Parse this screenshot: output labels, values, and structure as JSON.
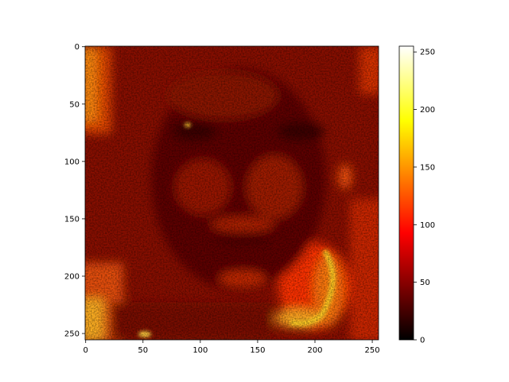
{
  "chart_data": {
    "type": "heatmap",
    "title": "",
    "xlabel": "",
    "ylabel": "",
    "image_size": [
      256,
      256
    ],
    "xlim": [
      0,
      255
    ],
    "ylim": [
      255,
      0
    ],
    "y_inverted": true,
    "x_ticks": [
      0,
      50,
      100,
      150,
      200,
      250
    ],
    "y_ticks": [
      0,
      50,
      100,
      150,
      200,
      250
    ],
    "colormap": "hot",
    "colorbar": {
      "range": [
        0,
        255
      ],
      "ticks": [
        0,
        50,
        100,
        150,
        200,
        250
      ],
      "position": "right"
    },
    "content": "intensity map of a face",
    "grid": false,
    "dominant_range": [
      40,
      110
    ]
  }
}
